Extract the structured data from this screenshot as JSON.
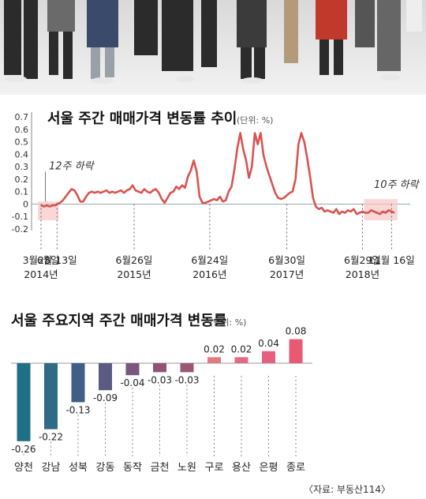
{
  "chart_data": [
    {
      "type": "line",
      "title": "서울 주간 매매가격 변동률 추이",
      "unit": "(단위: %)",
      "ylim": [
        -0.2,
        0.7
      ],
      "yticks": [
        "0.7",
        "0.6",
        "0.5",
        "0.4",
        "0.3",
        "0.2",
        "0.1",
        "0",
        "-0.1",
        "-0.2"
      ],
      "ytick_values": [
        0.7,
        0.6,
        0.5,
        0.4,
        0.3,
        0.2,
        0.1,
        0,
        -0.1,
        -0.2
      ],
      "date_labels": [
        {
          "day": "3월28일",
          "year": "2014년"
        },
        {
          "day": "6월 13일",
          "year": ""
        },
        {
          "day": "6월26일",
          "year": "2015년"
        },
        {
          "day": "6월24일",
          "year": "2016년"
        },
        {
          "day": "6월30일",
          "year": "2017년"
        },
        {
          "day": "6월29일",
          "year": "2018년"
        },
        {
          "day": "11월 16일",
          "year": ""
        }
      ],
      "date_positions": [
        0,
        11,
        64,
        116,
        169,
        221,
        241
      ],
      "annotations": [
        "12주 하락",
        "10주 하락"
      ],
      "series": [
        {
          "color": "#d9534f",
          "x": [
            0,
            2,
            4,
            6,
            8,
            10,
            11,
            13,
            15,
            17,
            19,
            21,
            23,
            25,
            27,
            29,
            31,
            33,
            35,
            37,
            39,
            41,
            43,
            45,
            47,
            49,
            51,
            53,
            55,
            57,
            59,
            61,
            63,
            65,
            67,
            69,
            71,
            73,
            75,
            77,
            79,
            81,
            83,
            85,
            87,
            89,
            91,
            93,
            95,
            97,
            99,
            101,
            103,
            105,
            107,
            109,
            111,
            113,
            115,
            117,
            119,
            121,
            123,
            125,
            127,
            129,
            131,
            133,
            135,
            137,
            139,
            141,
            143,
            145,
            147,
            149,
            151,
            153,
            155,
            157,
            159,
            161,
            163,
            165,
            167,
            169,
            171,
            173,
            175,
            177,
            179,
            181,
            183,
            185,
            187,
            189,
            191,
            193,
            195,
            197,
            199,
            201,
            203,
            205,
            207,
            209,
            211,
            213,
            215,
            217,
            219,
            221,
            223,
            225,
            227,
            229,
            231,
            233,
            235,
            237,
            239,
            241,
            243
          ],
          "y": [
            -0.01,
            -0.02,
            -0.01,
            -0.02,
            -0.01,
            -0.01,
            0.0,
            0.01,
            0.03,
            0.06,
            0.09,
            0.12,
            0.11,
            0.07,
            0.02,
            0.02,
            0.06,
            0.09,
            0.1,
            0.09,
            0.1,
            0.09,
            0.1,
            0.11,
            0.09,
            0.1,
            0.09,
            0.1,
            0.11,
            0.09,
            0.11,
            0.12,
            0.15,
            0.11,
            0.1,
            0.09,
            0.12,
            0.1,
            0.09,
            0.11,
            0.12,
            0.09,
            0.04,
            0.01,
            0.05,
            0.09,
            0.1,
            0.14,
            0.12,
            0.15,
            0.13,
            0.22,
            0.27,
            0.35,
            0.26,
            0.06,
            0.01,
            0.01,
            0.02,
            0.03,
            0.04,
            0.03,
            0.06,
            0.02,
            0.03,
            0.1,
            0.14,
            0.28,
            0.45,
            0.57,
            0.44,
            0.35,
            0.21,
            0.3,
            0.57,
            0.48,
            0.57,
            0.39,
            0.3,
            0.23,
            0.16,
            0.09,
            0.05,
            0.04,
            0.05,
            0.07,
            0.09,
            0.1,
            0.2,
            0.48,
            0.57,
            0.5,
            0.37,
            0.22,
            0.05,
            -0.02,
            -0.04,
            -0.03,
            -0.06,
            -0.05,
            -0.06,
            -0.07,
            -0.04,
            -0.08,
            -0.06,
            -0.07,
            -0.05,
            -0.06,
            -0.04,
            -0.08,
            -0.07,
            -0.06,
            -0.07,
            -0.07,
            -0.05,
            -0.06,
            -0.07,
            -0.08,
            -0.06,
            -0.07,
            -0.05,
            -0.06,
            -0.07
          ]
        }
      ]
    },
    {
      "type": "bar",
      "title": "서울 주요지역 주간 매매가격 변동률",
      "unit": "(단위: %)",
      "categories": [
        "양천",
        "강남",
        "성북",
        "강동",
        "동작",
        "금천",
        "노원",
        "구로",
        "용산",
        "은평",
        "종로"
      ],
      "values": [
        -0.26,
        -0.22,
        -0.13,
        -0.09,
        -0.04,
        -0.03,
        -0.03,
        0.02,
        0.02,
        0.04,
        0.08
      ],
      "value_labels": [
        "-0.26",
        "-0.22",
        "-0.13",
        "-0.09",
        "-0.04",
        "-0.03",
        "-0.03",
        "0.02",
        "0.02",
        "0.04",
        "0.08"
      ],
      "colors": [
        "#1f6f85",
        "#2f6a86",
        "#3f5f86",
        "#5a5a82",
        "#7a567d",
        "#8f5478",
        "#9c5676",
        "#e07a87",
        "#e16b82",
        "#e5607c",
        "#e85a74"
      ],
      "source": "〈자료: 부동산114〉"
    }
  ]
}
